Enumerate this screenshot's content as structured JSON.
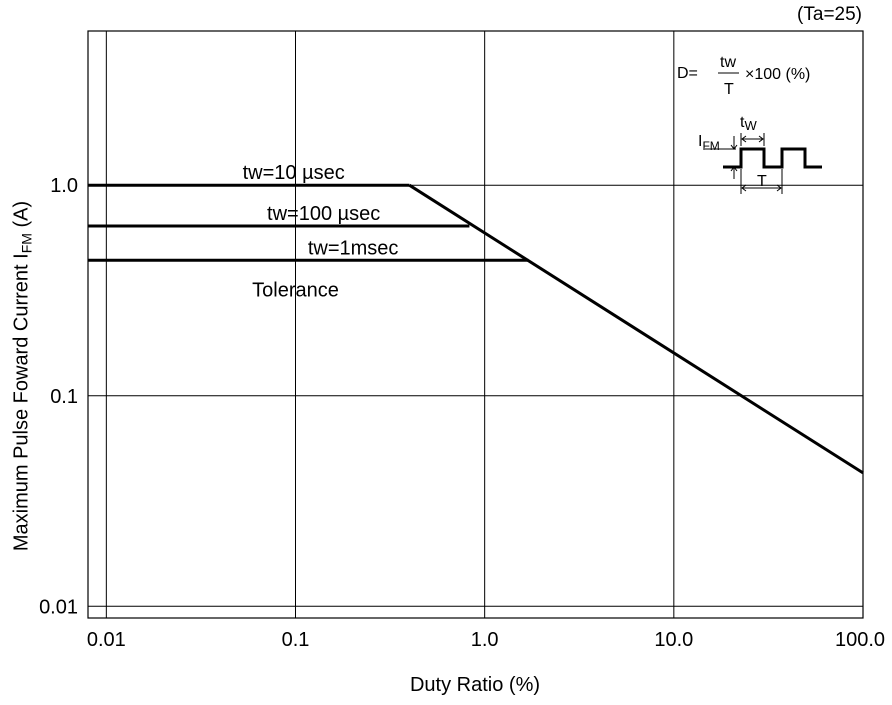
{
  "conditions": "(Ta=25)",
  "chart_data": {
    "type": "line",
    "title": "",
    "xlabel": "Duty Ratio (%)",
    "ylabel": "Maximum Pulse Foward Current I",
    "ylabel_sub": "FM",
    "ylabel_unit": " (A)",
    "xscale": "log",
    "yscale": "log",
    "xlim": [
      0.008,
      100
    ],
    "ylim": [
      0.0088,
      5.4
    ],
    "grid": true,
    "xticks": [
      {
        "value": 0.01,
        "label": "0.01"
      },
      {
        "value": 0.1,
        "label": "0.1"
      },
      {
        "value": 1,
        "label": "1.0"
      },
      {
        "value": 10,
        "label": "10.0"
      },
      {
        "value": 100,
        "label": "100.0"
      }
    ],
    "yticks": [
      {
        "value": 0.01,
        "label": "0.01"
      },
      {
        "value": 0.1,
        "label": "0.1"
      },
      {
        "value": 1,
        "label": "1.0"
      }
    ],
    "series": [
      {
        "name": "tw=10 µsec",
        "x": [
          0.008,
          0.4
        ],
        "y": [
          1.0,
          1.0
        ]
      },
      {
        "name": "tw=100 µsec",
        "x": [
          0.008,
          0.83
        ],
        "y": [
          0.64,
          0.64
        ]
      },
      {
        "name": "tw=1msec",
        "x": [
          0.008,
          1.7
        ],
        "y": [
          0.44,
          0.44
        ]
      },
      {
        "name": "",
        "x": [
          0.4,
          100
        ],
        "y": [
          1.0,
          0.043
        ]
      }
    ],
    "annotations": [
      {
        "text": "Tolerance",
        "x": 0.1,
        "y": 0.32
      }
    ],
    "formula": {
      "lhs": "D=",
      "numerator": "tw",
      "denominator": "T",
      "rhs": "×100 (%)"
    },
    "inset": {
      "current_label": "I",
      "current_sub": "FM",
      "width_label": "t",
      "width_sub": "W",
      "period_label": "T"
    }
  }
}
